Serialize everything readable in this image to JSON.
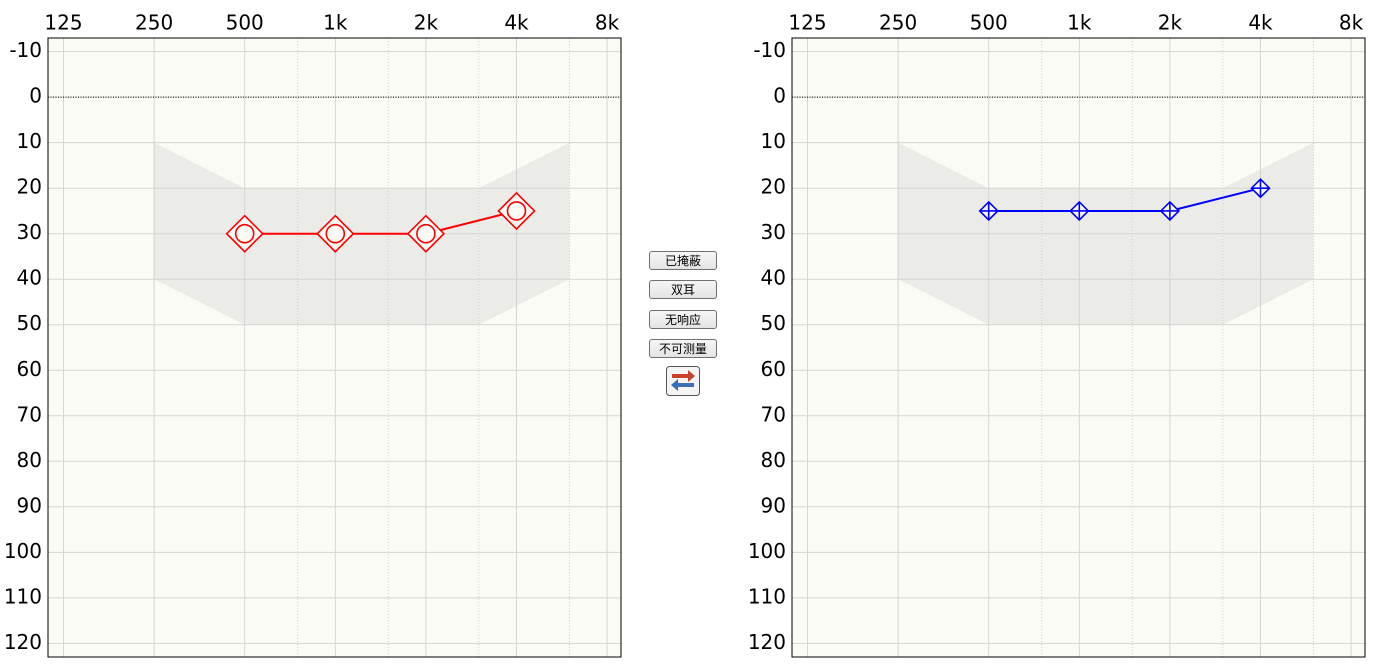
{
  "chart_data": [
    {
      "type": "line",
      "x": [
        500,
        1000,
        2000,
        4000
      ],
      "series": [
        {
          "color": "#ff0000",
          "marker": "circle-diamond",
          "values": [
            30,
            30,
            30,
            25
          ]
        }
      ],
      "xscale": "log",
      "xlim": [
        111,
        8900
      ],
      "xticks": [
        125,
        250,
        500,
        {
          "value": 1000,
          "label": "1k"
        },
        {
          "value": 2000,
          "label": "2k"
        },
        {
          "value": 4000,
          "label": "4k"
        },
        {
          "value": 8000,
          "label": "8k"
        }
      ],
      "xminor": [
        750,
        1500,
        3000,
        6000
      ],
      "ylim": [
        -13,
        123
      ],
      "yinverted": true,
      "yticks": [
        -10,
        0,
        10,
        20,
        30,
        40,
        50,
        60,
        70,
        80,
        90,
        100,
        110,
        120
      ],
      "reference_line": 0,
      "grid": true,
      "region": {
        "x": [
          250,
          500,
          3000,
          6000,
          6000,
          3000,
          500,
          250
        ],
        "y": [
          10,
          20,
          20,
          10,
          40,
          50,
          50,
          40
        ]
      }
    },
    {
      "type": "line",
      "x": [
        500,
        1000,
        2000,
        4000
      ],
      "series": [
        {
          "color": "#0000ff",
          "marker": "diamond-cross",
          "values": [
            25,
            25,
            25,
            20
          ]
        }
      ],
      "xscale": "log",
      "xlim": [
        111,
        8900
      ],
      "xticks": [
        125,
        250,
        500,
        {
          "value": 1000,
          "label": "1k"
        },
        {
          "value": 2000,
          "label": "2k"
        },
        {
          "value": 4000,
          "label": "4k"
        },
        {
          "value": 8000,
          "label": "8k"
        }
      ],
      "xminor": [
        750,
        1500,
        3000,
        6000
      ],
      "ylim": [
        -13,
        123
      ],
      "yinverted": true,
      "yticks": [
        -10,
        0,
        10,
        20,
        30,
        40,
        50,
        60,
        70,
        80,
        90,
        100,
        110,
        120
      ],
      "reference_line": 0,
      "grid": true,
      "region": {
        "x": [
          250,
          500,
          3000,
          6000,
          6000,
          3000,
          500,
          250
        ],
        "y": [
          10,
          20,
          20,
          10,
          40,
          50,
          50,
          40
        ]
      }
    }
  ],
  "buttons": [
    "已掩蔽",
    "双耳",
    "无响应",
    "不可测量"
  ]
}
